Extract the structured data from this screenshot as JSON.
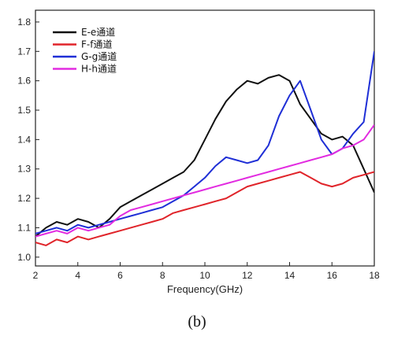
{
  "chart_data": {
    "type": "line",
    "xlabel": "Frequency(GHz)",
    "ylabel": "",
    "xlim": [
      2,
      18
    ],
    "ylim": [
      0.97,
      1.84
    ],
    "xticks": [
      2,
      4,
      6,
      8,
      10,
      12,
      14,
      16,
      18
    ],
    "yticks": [
      1.0,
      1.1,
      1.2,
      1.3,
      1.4,
      1.5,
      1.6,
      1.7,
      1.8
    ],
    "grid": false,
    "legend_position": "top-left",
    "caption": "(b)",
    "series": [
      {
        "name": "E-e通道",
        "color": "#111111",
        "x": [
          2,
          2.5,
          3,
          3.5,
          4,
          4.5,
          5,
          5.5,
          6,
          6.5,
          7,
          7.5,
          8,
          8.5,
          9,
          9.5,
          10,
          10.5,
          11,
          11.5,
          12,
          12.5,
          13,
          13.5,
          14,
          14.5,
          15,
          15.5,
          16,
          16.5,
          17,
          17.5,
          18
        ],
        "y": [
          1.07,
          1.1,
          1.12,
          1.11,
          1.13,
          1.12,
          1.1,
          1.13,
          1.17,
          1.19,
          1.21,
          1.23,
          1.25,
          1.27,
          1.29,
          1.33,
          1.4,
          1.47,
          1.53,
          1.57,
          1.6,
          1.59,
          1.61,
          1.62,
          1.6,
          1.52,
          1.47,
          1.42,
          1.4,
          1.41,
          1.38,
          1.3,
          1.22
        ]
      },
      {
        "name": "F-f通道",
        "color": "#e0242a",
        "x": [
          2,
          2.5,
          3,
          3.5,
          4,
          4.5,
          5,
          5.5,
          6,
          6.5,
          7,
          7.5,
          8,
          8.5,
          9,
          9.5,
          10,
          10.5,
          11,
          11.5,
          12,
          12.5,
          13,
          13.5,
          14,
          14.5,
          15,
          15.5,
          16,
          16.5,
          17,
          17.5,
          18
        ],
        "y": [
          1.05,
          1.04,
          1.06,
          1.05,
          1.07,
          1.06,
          1.07,
          1.08,
          1.09,
          1.1,
          1.11,
          1.12,
          1.13,
          1.15,
          1.16,
          1.17,
          1.18,
          1.19,
          1.2,
          1.22,
          1.24,
          1.25,
          1.26,
          1.27,
          1.28,
          1.29,
          1.27,
          1.25,
          1.24,
          1.25,
          1.27,
          1.28,
          1.29
        ]
      },
      {
        "name": "G-g通道",
        "color": "#1f2fd6",
        "x": [
          2,
          2.5,
          3,
          3.5,
          4,
          4.5,
          5,
          5.5,
          6,
          6.5,
          7,
          7.5,
          8,
          8.5,
          9,
          9.5,
          10,
          10.5,
          11,
          11.5,
          12,
          12.5,
          13,
          13.5,
          14,
          14.5,
          15,
          15.5,
          16,
          16.5,
          17,
          17.5,
          18
        ],
        "y": [
          1.08,
          1.09,
          1.1,
          1.09,
          1.11,
          1.1,
          1.11,
          1.12,
          1.13,
          1.14,
          1.15,
          1.16,
          1.17,
          1.19,
          1.21,
          1.24,
          1.27,
          1.31,
          1.34,
          1.33,
          1.32,
          1.33,
          1.38,
          1.48,
          1.55,
          1.6,
          1.5,
          1.4,
          1.35,
          1.37,
          1.42,
          1.46,
          1.7
        ]
      },
      {
        "name": "H-h通道",
        "color": "#e22be0",
        "x": [
          2,
          2.5,
          3,
          3.5,
          4,
          4.5,
          5,
          5.5,
          6,
          6.5,
          7,
          7.5,
          8,
          8.5,
          9,
          9.5,
          10,
          10.5,
          11,
          11.5,
          12,
          12.5,
          13,
          13.5,
          14,
          14.5,
          15,
          15.5,
          16,
          16.5,
          17,
          17.5,
          18
        ],
        "y": [
          1.07,
          1.08,
          1.09,
          1.08,
          1.1,
          1.09,
          1.1,
          1.11,
          1.14,
          1.16,
          1.17,
          1.18,
          1.19,
          1.2,
          1.21,
          1.22,
          1.23,
          1.24,
          1.25,
          1.26,
          1.27,
          1.28,
          1.29,
          1.3,
          1.31,
          1.32,
          1.33,
          1.34,
          1.35,
          1.37,
          1.38,
          1.4,
          1.45
        ]
      }
    ]
  }
}
